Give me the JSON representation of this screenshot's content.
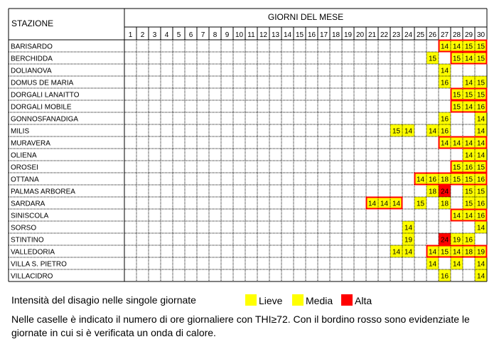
{
  "chart_data": {
    "type": "table",
    "station_header": "STAZIONE",
    "days_header": "GIORNI DEL MESE",
    "days": [
      1,
      2,
      3,
      4,
      5,
      6,
      7,
      8,
      9,
      10,
      11,
      12,
      13,
      14,
      15,
      16,
      17,
      18,
      19,
      20,
      21,
      22,
      23,
      24,
      25,
      26,
      27,
      28,
      29,
      30
    ],
    "rows": [
      {
        "station": "BARISARDO",
        "cells": [
          {
            "day": 27,
            "value": 14,
            "level": "lieve"
          },
          {
            "day": 28,
            "value": 14,
            "level": "lieve"
          },
          {
            "day": 29,
            "value": 15,
            "level": "lieve"
          },
          {
            "day": 30,
            "value": 15,
            "level": "lieve"
          }
        ],
        "heatwaves": [
          [
            27,
            30
          ]
        ]
      },
      {
        "station": "BERCHIDDA",
        "cells": [
          {
            "day": 26,
            "value": 15,
            "level": "lieve"
          },
          {
            "day": 28,
            "value": 15,
            "level": "lieve"
          },
          {
            "day": 29,
            "value": 14,
            "level": "lieve"
          },
          {
            "day": 30,
            "value": 15,
            "level": "lieve"
          }
        ],
        "heatwaves": [
          [
            28,
            30
          ]
        ]
      },
      {
        "station": "DOLIANOVA",
        "cells": [
          {
            "day": 27,
            "value": 14,
            "level": "lieve"
          }
        ],
        "heatwaves": []
      },
      {
        "station": "DOMUS DE MARIA",
        "cells": [
          {
            "day": 27,
            "value": 16,
            "level": "lieve"
          },
          {
            "day": 29,
            "value": 14,
            "level": "lieve"
          },
          {
            "day": 30,
            "value": 15,
            "level": "lieve"
          }
        ],
        "heatwaves": []
      },
      {
        "station": "DORGALI LANAITTO",
        "cells": [
          {
            "day": 28,
            "value": 15,
            "level": "lieve"
          },
          {
            "day": 29,
            "value": 15,
            "level": "lieve"
          },
          {
            "day": 30,
            "value": 15,
            "level": "lieve"
          }
        ],
        "heatwaves": [
          [
            28,
            30
          ]
        ]
      },
      {
        "station": "DORGALI MOBILE",
        "cells": [
          {
            "day": 28,
            "value": 15,
            "level": "lieve"
          },
          {
            "day": 29,
            "value": 14,
            "level": "lieve"
          },
          {
            "day": 30,
            "value": 16,
            "level": "lieve"
          }
        ],
        "heatwaves": [
          [
            28,
            30
          ]
        ]
      },
      {
        "station": "GONNOSFANADIGA",
        "cells": [
          {
            "day": 27,
            "value": 16,
            "level": "lieve"
          },
          {
            "day": 30,
            "value": 14,
            "level": "lieve"
          }
        ],
        "heatwaves": []
      },
      {
        "station": "MILIS",
        "cells": [
          {
            "day": 23,
            "value": 15,
            "level": "lieve"
          },
          {
            "day": 24,
            "value": 14,
            "level": "lieve"
          },
          {
            "day": 26,
            "value": 14,
            "level": "lieve"
          },
          {
            "day": 27,
            "value": 16,
            "level": "lieve"
          },
          {
            "day": 30,
            "value": 14,
            "level": "lieve"
          }
        ],
        "heatwaves": []
      },
      {
        "station": "MURAVERA",
        "cells": [
          {
            "day": 27,
            "value": 14,
            "level": "lieve"
          },
          {
            "day": 28,
            "value": 14,
            "level": "lieve"
          },
          {
            "day": 29,
            "value": 14,
            "level": "lieve"
          },
          {
            "day": 30,
            "value": 14,
            "level": "lieve"
          }
        ],
        "heatwaves": [
          [
            27,
            30
          ]
        ]
      },
      {
        "station": "OLIENA",
        "cells": [
          {
            "day": 29,
            "value": 14,
            "level": "lieve"
          },
          {
            "day": 30,
            "value": 14,
            "level": "lieve"
          }
        ],
        "heatwaves": []
      },
      {
        "station": "OROSEI",
        "cells": [
          {
            "day": 28,
            "value": 15,
            "level": "lieve"
          },
          {
            "day": 29,
            "value": 16,
            "level": "lieve"
          },
          {
            "day": 30,
            "value": 15,
            "level": "lieve"
          }
        ],
        "heatwaves": [
          [
            28,
            30
          ]
        ]
      },
      {
        "station": "OTTANA",
        "cells": [
          {
            "day": 25,
            "value": 14,
            "level": "lieve"
          },
          {
            "day": 26,
            "value": 16,
            "level": "lieve"
          },
          {
            "day": 27,
            "value": 18,
            "level": "lieve"
          },
          {
            "day": 28,
            "value": 15,
            "level": "lieve"
          },
          {
            "day": 29,
            "value": 15,
            "level": "lieve"
          },
          {
            "day": 30,
            "value": 16,
            "level": "lieve"
          }
        ],
        "heatwaves": [
          [
            25,
            30
          ]
        ]
      },
      {
        "station": "PALMAS ARBOREA",
        "cells": [
          {
            "day": 26,
            "value": 18,
            "level": "lieve"
          },
          {
            "day": 27,
            "value": 24,
            "level": "alta"
          },
          {
            "day": 29,
            "value": 15,
            "level": "lieve"
          },
          {
            "day": 30,
            "value": 15,
            "level": "lieve"
          }
        ],
        "heatwaves": []
      },
      {
        "station": "SARDARA",
        "cells": [
          {
            "day": 21,
            "value": 14,
            "level": "lieve"
          },
          {
            "day": 22,
            "value": 14,
            "level": "lieve"
          },
          {
            "day": 23,
            "value": 14,
            "level": "lieve"
          },
          {
            "day": 25,
            "value": 15,
            "level": "lieve"
          },
          {
            "day": 27,
            "value": 18,
            "level": "lieve"
          },
          {
            "day": 29,
            "value": 15,
            "level": "lieve"
          },
          {
            "day": 30,
            "value": 16,
            "level": "lieve"
          }
        ],
        "heatwaves": [
          [
            21,
            23
          ]
        ]
      },
      {
        "station": "SINISCOLA",
        "cells": [
          {
            "day": 28,
            "value": 14,
            "level": "lieve"
          },
          {
            "day": 29,
            "value": 14,
            "level": "lieve"
          },
          {
            "day": 30,
            "value": 16,
            "level": "lieve"
          }
        ],
        "heatwaves": [
          [
            28,
            30
          ]
        ]
      },
      {
        "station": "SORSO",
        "cells": [
          {
            "day": 24,
            "value": 14,
            "level": "lieve"
          },
          {
            "day": 30,
            "value": 14,
            "level": "lieve"
          }
        ],
        "heatwaves": []
      },
      {
        "station": "STINTINO",
        "cells": [
          {
            "day": 24,
            "value": 19,
            "level": "lieve"
          },
          {
            "day": 27,
            "value": 24,
            "level": "alta"
          },
          {
            "day": 28,
            "value": 19,
            "level": "lieve"
          },
          {
            "day": 29,
            "value": 16,
            "level": "lieve"
          }
        ],
        "heatwaves": []
      },
      {
        "station": "VALLEDORIA",
        "cells": [
          {
            "day": 23,
            "value": 14,
            "level": "lieve"
          },
          {
            "day": 24,
            "value": 14,
            "level": "lieve"
          },
          {
            "day": 26,
            "value": 14,
            "level": "lieve"
          },
          {
            "day": 27,
            "value": 15,
            "level": "lieve"
          },
          {
            "day": 28,
            "value": 14,
            "level": "lieve"
          },
          {
            "day": 29,
            "value": 18,
            "level": "lieve"
          },
          {
            "day": 30,
            "value": 19,
            "level": "lieve"
          }
        ],
        "heatwaves": [
          [
            26,
            30
          ]
        ]
      },
      {
        "station": "VILLA S. PIETRO",
        "cells": [
          {
            "day": 26,
            "value": 14,
            "level": "lieve"
          },
          {
            "day": 28,
            "value": 14,
            "level": "lieve"
          },
          {
            "day": 30,
            "value": 14,
            "level": "lieve"
          }
        ],
        "heatwaves": []
      },
      {
        "station": "VILLACIDRO",
        "cells": [
          {
            "day": 27,
            "value": 16,
            "level": "lieve"
          },
          {
            "day": 30,
            "value": 14,
            "level": "lieve"
          }
        ],
        "heatwaves": []
      }
    ],
    "colors": {
      "lieve": "#ffff00",
      "media": "#ffff00",
      "alta": "#ff0000",
      "heatwave_border": "#ff0000",
      "grid": "#000000"
    }
  },
  "legend": {
    "title": "Intensità del disagio nelle singole giornate",
    "items": [
      {
        "label": "Lieve",
        "color": "#ffff00"
      },
      {
        "label": "Media",
        "color": "#ffff00"
      },
      {
        "label": "Alta",
        "color": "#ff0000"
      }
    ]
  },
  "note": "Nelle caselle è indicato il numero di ore giornaliere con THI≥72. Con il bordino rosso sono evidenziate le giornate in cui si è verificata un onda di calore."
}
